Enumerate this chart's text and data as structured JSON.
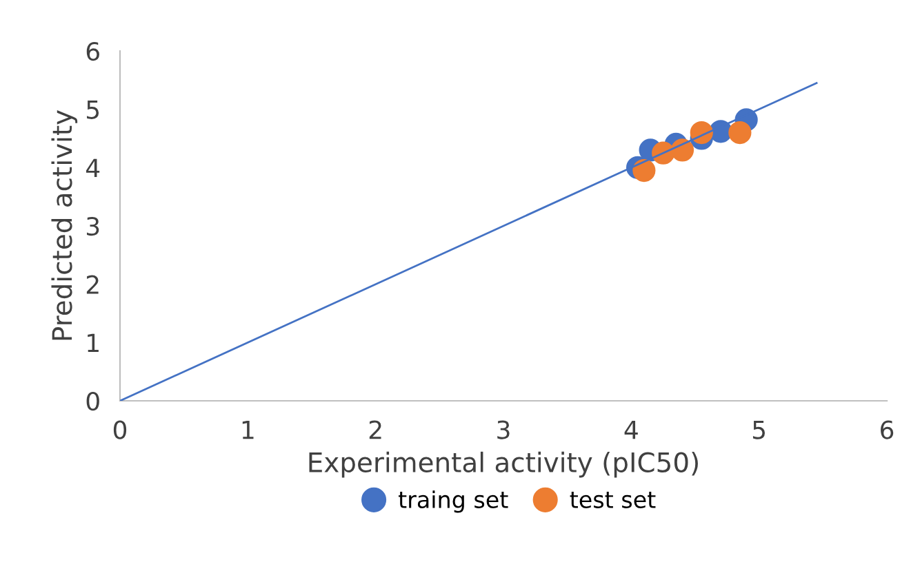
{
  "chart_data": {
    "type": "scatter",
    "xlabel": "Experimental activity (pIC50)",
    "ylabel": "Predicted activity",
    "xlim": [
      0,
      6
    ],
    "ylim": [
      0,
      6
    ],
    "xticks": [
      0,
      1,
      2,
      3,
      4,
      5,
      6
    ],
    "yticks": [
      0,
      1,
      2,
      3,
      4,
      5,
      6
    ],
    "grid": false,
    "legend": "bottom",
    "marker": "circle",
    "series": [
      {
        "type": "line",
        "marker": "none",
        "color": "#4472c4",
        "x": [
          0,
          5.45
        ],
        "values": [
          0,
          5.45
        ]
      },
      {
        "name": "traing set",
        "color": "#4472c4",
        "x": [
          4.05,
          4.15,
          4.35,
          4.55,
          4.7,
          4.9
        ],
        "values": [
          4.0,
          4.3,
          4.4,
          4.5,
          4.62,
          4.82
        ]
      },
      {
        "name": "test set",
        "color": "#ed7d31",
        "x": [
          4.1,
          4.25,
          4.4,
          4.55,
          4.85
        ],
        "values": [
          3.95,
          4.25,
          4.3,
          4.6,
          4.6
        ]
      }
    ]
  }
}
